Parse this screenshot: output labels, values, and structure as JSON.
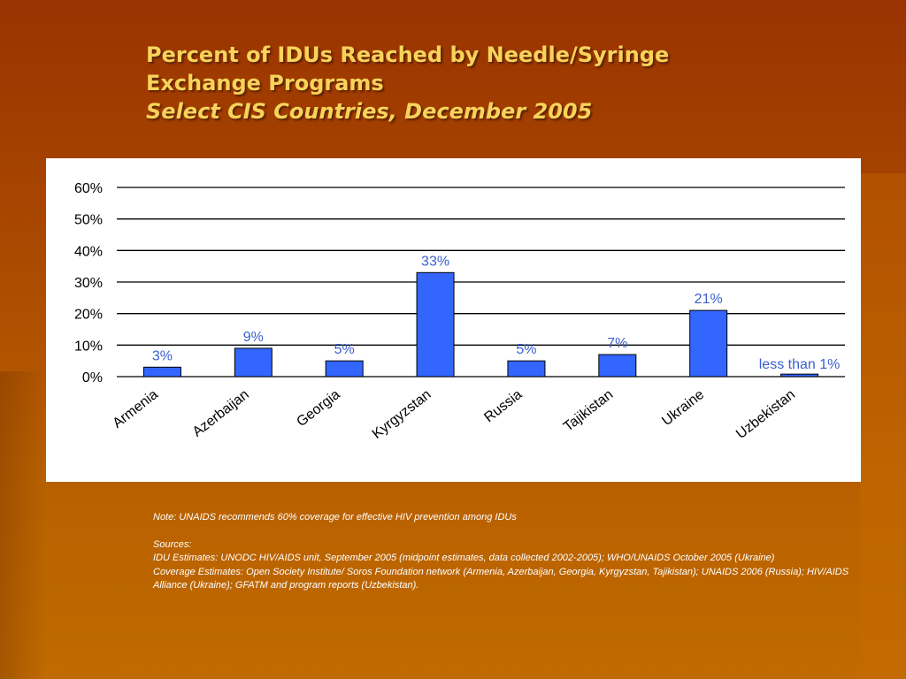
{
  "slide": {
    "title_line1": "Percent of IDUs Reached by Needle/Syringe",
    "title_line2": "Exchange Programs",
    "subtitle": "Select CIS Countries, December 2005"
  },
  "chart_data": {
    "type": "bar",
    "categories": [
      "Armenia",
      "Azerbaijan",
      "Georgia",
      "Kyrgyzstan",
      "Russia",
      "Tajikistan",
      "Ukraine",
      "Uzbekistan"
    ],
    "values": [
      3,
      9,
      5,
      33,
      5,
      7,
      21,
      0.8
    ],
    "data_labels": [
      "3%",
      "9%",
      "5%",
      "33%",
      "5%",
      "7%",
      "21%",
      "less than 1%"
    ],
    "y_ticks": [
      "0%",
      "10%",
      "20%",
      "30%",
      "40%",
      "50%",
      "60%"
    ],
    "ylim": [
      0,
      60
    ],
    "grid": true,
    "bar_color": "#3366ff",
    "label_color": "#3a5fd0"
  },
  "notes": {
    "note": "Note: UNAIDS recommends 60% coverage for effective HIV prevention among IDUs",
    "sources_heading": "Sources:",
    "idu_estimates": " IDU Estimates: UNODC HIV/AIDS unit, September 2005 (midpoint estimates, data collected 2002-2005); WHO/UNAIDS October 2005 (Ukraine)",
    "coverage_estimates": "Coverage Estimates: Open Society Institute/ Soros Foundation network (Armenia, Azerbaijan, Georgia, Kyrgyzstan, Tajikistan); UNAIDS 2006 (Russia); HIV/AIDS Alliance (Ukraine); GFATM and program reports (Uzbekistan)."
  }
}
